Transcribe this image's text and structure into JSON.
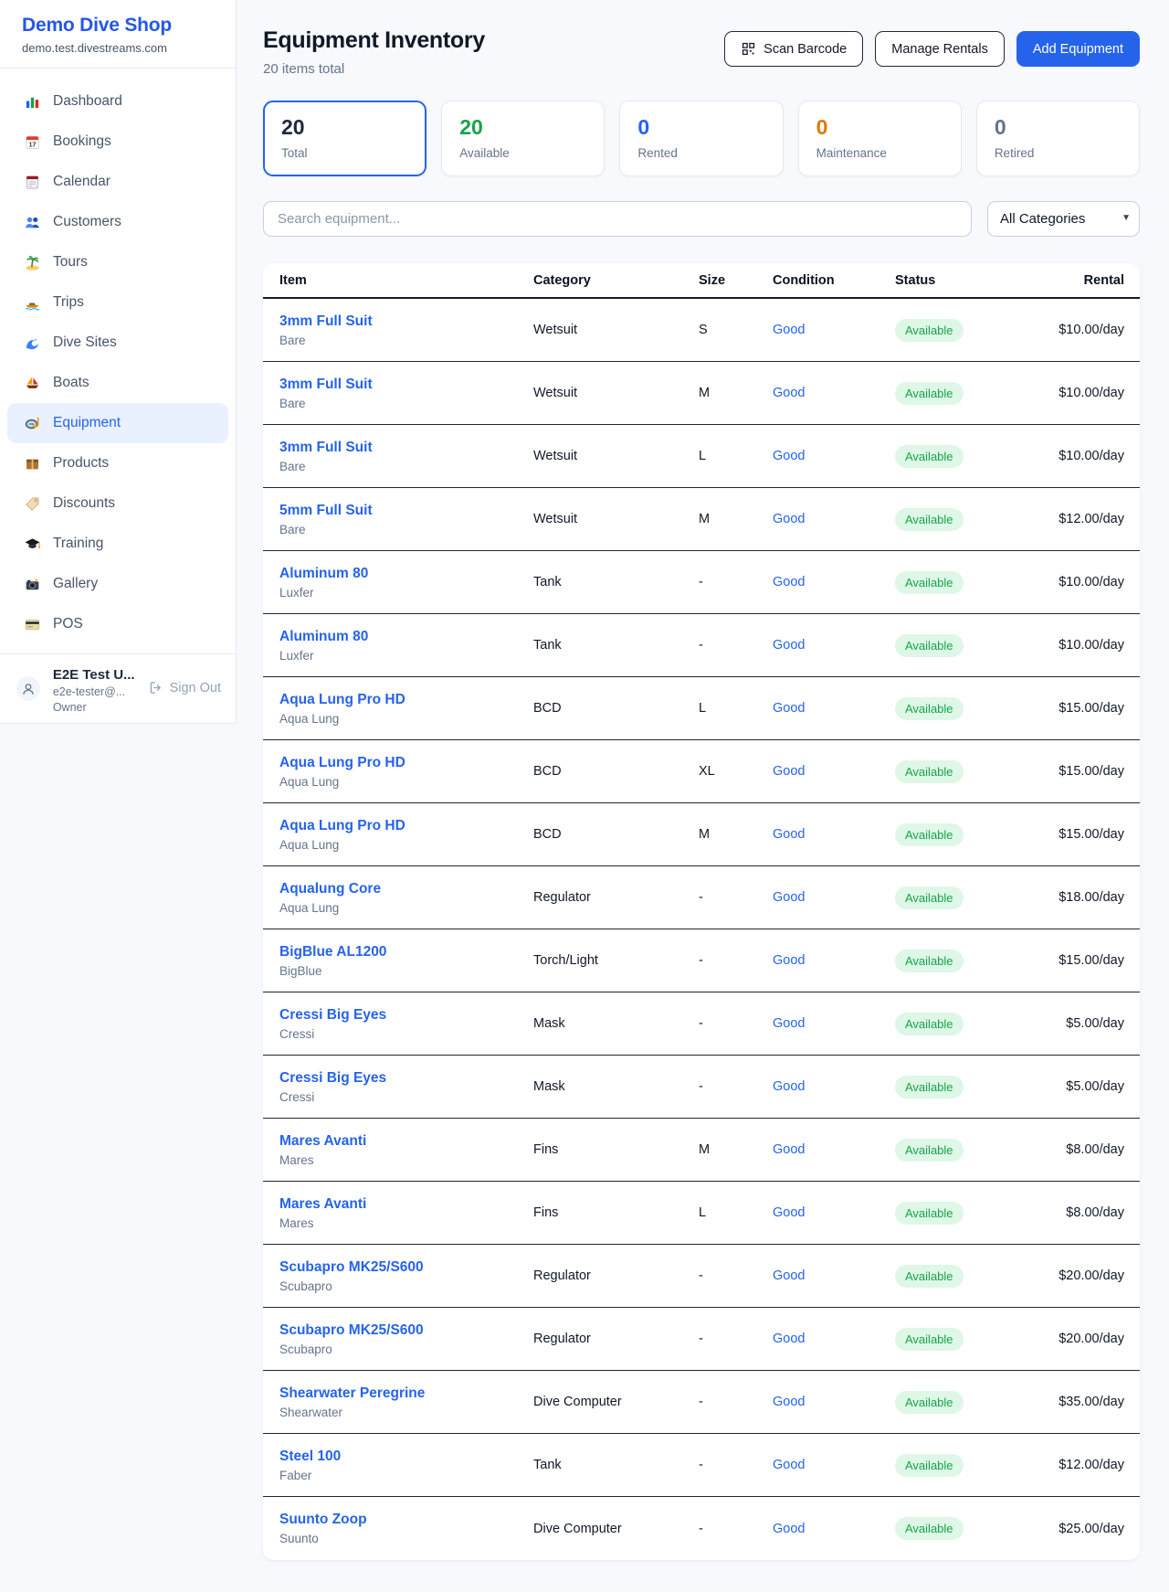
{
  "accent_color": "#2563eb",
  "sidebar": {
    "brand": {
      "name": "Demo Dive Shop",
      "domain": "demo.test.divestreams.com"
    },
    "items": [
      {
        "label": "Dashboard",
        "icon": "bar-chart-icon",
        "active": false
      },
      {
        "label": "Bookings",
        "icon": "calendar-date-icon",
        "active": false
      },
      {
        "label": "Calendar",
        "icon": "tearoff-calendar-icon",
        "active": false
      },
      {
        "label": "Customers",
        "icon": "people-icon",
        "active": false
      },
      {
        "label": "Tours",
        "icon": "palm-island-icon",
        "active": false
      },
      {
        "label": "Trips",
        "icon": "speedboat-icon",
        "active": false
      },
      {
        "label": "Dive Sites",
        "icon": "wave-icon",
        "active": false
      },
      {
        "label": "Boats",
        "icon": "sailboat-icon",
        "active": false
      },
      {
        "label": "Equipment",
        "icon": "dive-mask-icon",
        "active": true
      },
      {
        "label": "Products",
        "icon": "package-icon",
        "active": false
      },
      {
        "label": "Discounts",
        "icon": "tag-icon",
        "active": false
      },
      {
        "label": "Training",
        "icon": "grad-cap-icon",
        "active": false
      },
      {
        "label": "Gallery",
        "icon": "camera-icon",
        "active": false
      },
      {
        "label": "POS",
        "icon": "credit-card-icon",
        "active": false
      }
    ],
    "user": {
      "name": "E2E Test U...",
      "email": "e2e-tester@...",
      "role": "Owner",
      "sign_out_label": "Sign Out"
    }
  },
  "header": {
    "title": "Equipment Inventory",
    "subtitle": "20 items total",
    "scan_barcode_label": "Scan Barcode",
    "manage_rentals_label": "Manage Rentals",
    "add_equipment_label": "Add Equipment"
  },
  "stats": [
    {
      "value": "20",
      "label": "Total",
      "color": "#1e293b",
      "active": true
    },
    {
      "value": "20",
      "label": "Available",
      "color": "#16a34a",
      "active": false
    },
    {
      "value": "0",
      "label": "Rented",
      "color": "#2563eb",
      "active": false
    },
    {
      "value": "0",
      "label": "Maintenance",
      "color": "#dd7b06",
      "active": false
    },
    {
      "value": "0",
      "label": "Retired",
      "color": "#64748b",
      "active": false
    }
  ],
  "search": {
    "placeholder": "Search equipment...",
    "category_selected": "All Categories"
  },
  "table": {
    "columns": [
      "Item",
      "Category",
      "Size",
      "Condition",
      "Status",
      "Rental"
    ],
    "rows": [
      {
        "name": "3mm Full Suit",
        "brand": "Bare",
        "category": "Wetsuit",
        "size": "S",
        "condition": "Good",
        "status": "Available",
        "rental": "$10.00/day"
      },
      {
        "name": "3mm Full Suit",
        "brand": "Bare",
        "category": "Wetsuit",
        "size": "M",
        "condition": "Good",
        "status": "Available",
        "rental": "$10.00/day"
      },
      {
        "name": "3mm Full Suit",
        "brand": "Bare",
        "category": "Wetsuit",
        "size": "L",
        "condition": "Good",
        "status": "Available",
        "rental": "$10.00/day"
      },
      {
        "name": "5mm Full Suit",
        "brand": "Bare",
        "category": "Wetsuit",
        "size": "M",
        "condition": "Good",
        "status": "Available",
        "rental": "$12.00/day"
      },
      {
        "name": "Aluminum 80",
        "brand": "Luxfer",
        "category": "Tank",
        "size": "-",
        "condition": "Good",
        "status": "Available",
        "rental": "$10.00/day"
      },
      {
        "name": "Aluminum 80",
        "brand": "Luxfer",
        "category": "Tank",
        "size": "-",
        "condition": "Good",
        "status": "Available",
        "rental": "$10.00/day"
      },
      {
        "name": "Aqua Lung Pro HD",
        "brand": "Aqua Lung",
        "category": "BCD",
        "size": "L",
        "condition": "Good",
        "status": "Available",
        "rental": "$15.00/day"
      },
      {
        "name": "Aqua Lung Pro HD",
        "brand": "Aqua Lung",
        "category": "BCD",
        "size": "XL",
        "condition": "Good",
        "status": "Available",
        "rental": "$15.00/day"
      },
      {
        "name": "Aqua Lung Pro HD",
        "brand": "Aqua Lung",
        "category": "BCD",
        "size": "M",
        "condition": "Good",
        "status": "Available",
        "rental": "$15.00/day"
      },
      {
        "name": "Aqualung Core",
        "brand": "Aqua Lung",
        "category": "Regulator",
        "size": "-",
        "condition": "Good",
        "status": "Available",
        "rental": "$18.00/day"
      },
      {
        "name": "BigBlue AL1200",
        "brand": "BigBlue",
        "category": "Torch/Light",
        "size": "-",
        "condition": "Good",
        "status": "Available",
        "rental": "$15.00/day"
      },
      {
        "name": "Cressi Big Eyes",
        "brand": "Cressi",
        "category": "Mask",
        "size": "-",
        "condition": "Good",
        "status": "Available",
        "rental": "$5.00/day"
      },
      {
        "name": "Cressi Big Eyes",
        "brand": "Cressi",
        "category": "Mask",
        "size": "-",
        "condition": "Good",
        "status": "Available",
        "rental": "$5.00/day"
      },
      {
        "name": "Mares Avanti",
        "brand": "Mares",
        "category": "Fins",
        "size": "M",
        "condition": "Good",
        "status": "Available",
        "rental": "$8.00/day"
      },
      {
        "name": "Mares Avanti",
        "brand": "Mares",
        "category": "Fins",
        "size": "L",
        "condition": "Good",
        "status": "Available",
        "rental": "$8.00/day"
      },
      {
        "name": "Scubapro MK25/S600",
        "brand": "Scubapro",
        "category": "Regulator",
        "size": "-",
        "condition": "Good",
        "status": "Available",
        "rental": "$20.00/day"
      },
      {
        "name": "Scubapro MK25/S600",
        "brand": "Scubapro",
        "category": "Regulator",
        "size": "-",
        "condition": "Good",
        "status": "Available",
        "rental": "$20.00/day"
      },
      {
        "name": "Shearwater Peregrine",
        "brand": "Shearwater",
        "category": "Dive Computer",
        "size": "-",
        "condition": "Good",
        "status": "Available",
        "rental": "$35.00/day"
      },
      {
        "name": "Steel 100",
        "brand": "Faber",
        "category": "Tank",
        "size": "-",
        "condition": "Good",
        "status": "Available",
        "rental": "$12.00/day"
      },
      {
        "name": "Suunto Zoop",
        "brand": "Suunto",
        "category": "Dive Computer",
        "size": "-",
        "condition": "Good",
        "status": "Available",
        "rental": "$25.00/day"
      }
    ],
    "status_badge": {
      "bg": "#def7e7",
      "fg": "#17a34a"
    }
  }
}
